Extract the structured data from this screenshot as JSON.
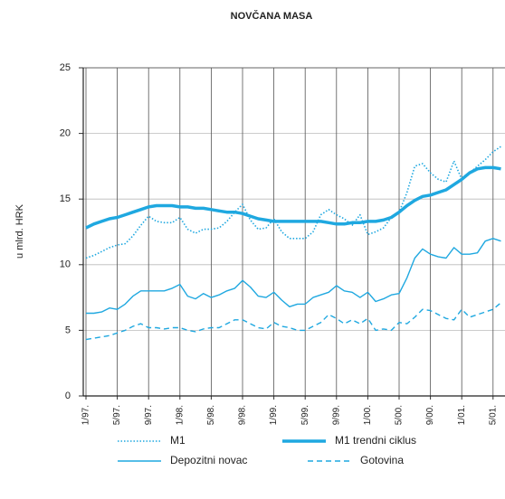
{
  "chart_data": {
    "type": "line",
    "title": "NOVČANA MASA",
    "y_label": "u mlrd. HRK",
    "categories": [
      "1/97.",
      null,
      null,
      null,
      "5/97.",
      null,
      null,
      null,
      "9/97.",
      null,
      null,
      null,
      "1/98.",
      null,
      null,
      null,
      "5/98.",
      null,
      null,
      null,
      "9/98.",
      null,
      null,
      null,
      "1/99.",
      null,
      null,
      null,
      "5/99.",
      null,
      null,
      null,
      "9/99.",
      null,
      null,
      null,
      "1/00.",
      null,
      null,
      null,
      "5/00.",
      null,
      null,
      null,
      "9/00.",
      null,
      null,
      null,
      "1/01.",
      null,
      null,
      null,
      "5/01.",
      null
    ],
    "ylim": [
      0,
      25
    ],
    "yticks": [
      0,
      5,
      10,
      15,
      20,
      25
    ],
    "grid": true,
    "series": [
      {
        "name": "M1",
        "color": "#1fa8e0",
        "dash": "dotted",
        "width": 1.6,
        "values": [
          10.5,
          10.7,
          11.0,
          11.3,
          11.5,
          11.6,
          12.2,
          13.0,
          13.7,
          13.3,
          13.2,
          13.2,
          13.6,
          12.7,
          12.4,
          12.7,
          12.7,
          12.8,
          13.3,
          14.0,
          14.6,
          13.4,
          12.7,
          12.8,
          13.5,
          12.5,
          12.0,
          12.0,
          12.0,
          12.5,
          13.8,
          14.2,
          13.8,
          13.5,
          13.0,
          13.8,
          12.3,
          12.5,
          12.8,
          13.6,
          14.0,
          15.5,
          17.5,
          17.7,
          17.0,
          16.5,
          16.3,
          17.9,
          16.5,
          17.0,
          17.5,
          18.0,
          18.6,
          19.0
        ]
      },
      {
        "name": "M1 trendni ciklus",
        "color": "#1fa8e0",
        "dash": "solid",
        "width": 3.5,
        "values": [
          12.8,
          13.1,
          13.3,
          13.5,
          13.6,
          13.8,
          14.0,
          14.2,
          14.4,
          14.5,
          14.5,
          14.5,
          14.4,
          14.4,
          14.3,
          14.3,
          14.2,
          14.1,
          14.0,
          14.0,
          13.9,
          13.7,
          13.5,
          13.4,
          13.3,
          13.3,
          13.3,
          13.3,
          13.3,
          13.3,
          13.3,
          13.2,
          13.1,
          13.1,
          13.2,
          13.2,
          13.3,
          13.3,
          13.4,
          13.6,
          14.0,
          14.5,
          14.9,
          15.2,
          15.3,
          15.5,
          15.7,
          16.1,
          16.5,
          17.0,
          17.3,
          17.4,
          17.4,
          17.3
        ]
      },
      {
        "name": "Depozitni novac",
        "color": "#1fa8e0",
        "dash": "solid",
        "width": 1.4,
        "values": [
          6.3,
          6.3,
          6.4,
          6.7,
          6.6,
          7.0,
          7.6,
          8.0,
          8.0,
          8.0,
          8.0,
          8.2,
          8.5,
          7.6,
          7.4,
          7.8,
          7.5,
          7.7,
          8.0,
          8.2,
          8.8,
          8.3,
          7.6,
          7.5,
          7.9,
          7.3,
          6.8,
          7.0,
          7.0,
          7.5,
          7.7,
          7.9,
          8.4,
          8.0,
          7.9,
          7.5,
          7.9,
          7.2,
          7.4,
          7.7,
          7.8,
          9.0,
          10.5,
          11.2,
          10.8,
          10.6,
          10.5,
          11.3,
          10.8,
          10.8,
          10.9,
          11.8,
          12.0,
          11.8
        ]
      },
      {
        "name": "Gotovina",
        "color": "#1fa8e0",
        "dash": "dashed",
        "width": 1.4,
        "values": [
          4.3,
          4.4,
          4.5,
          4.6,
          4.8,
          5.0,
          5.3,
          5.5,
          5.2,
          5.2,
          5.1,
          5.2,
          5.2,
          5.0,
          4.9,
          5.1,
          5.2,
          5.2,
          5.5,
          5.8,
          5.8,
          5.5,
          5.2,
          5.1,
          5.6,
          5.3,
          5.2,
          5.0,
          5.0,
          5.3,
          5.6,
          6.2,
          5.9,
          5.5,
          5.8,
          5.5,
          5.9,
          5.0,
          5.1,
          5.0,
          5.6,
          5.5,
          6.0,
          6.6,
          6.5,
          6.2,
          5.9,
          5.8,
          6.6,
          6.0,
          6.2,
          6.4,
          6.6,
          7.1
        ]
      }
    ]
  }
}
